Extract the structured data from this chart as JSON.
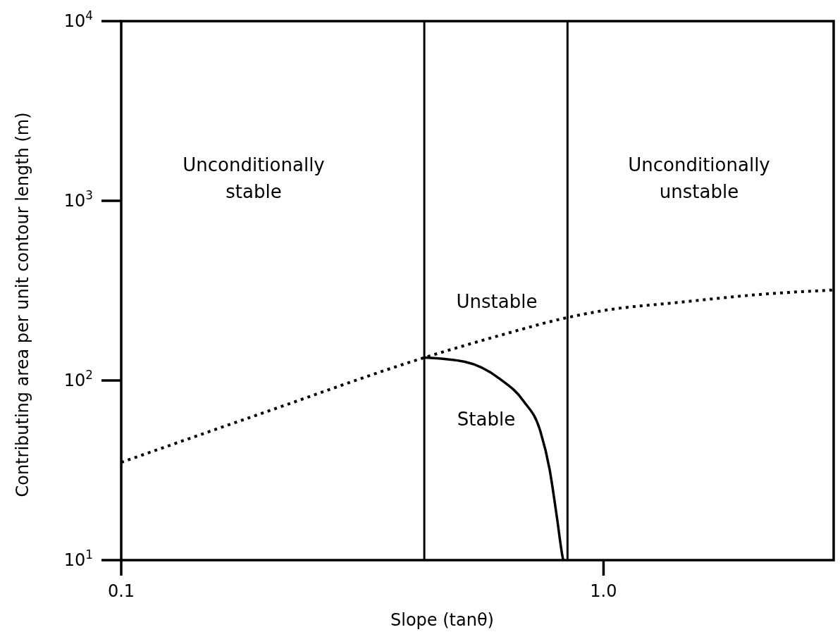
{
  "chart_data": {
    "type": "line",
    "xlabel": "Slope (tanθ)",
    "ylabel": "Contributing area per unit contour length (m)",
    "log": "xy",
    "grid": false,
    "xlim": [
      0.1,
      3
    ],
    "xticks": [
      0.1,
      {
        "value": 1,
        "label": "1.0"
      }
    ],
    "ylim": [
      10,
      10000
    ],
    "yticks": [
      {
        "value": 10,
        "label": "10$^{1}$"
      },
      {
        "value": 100,
        "label": "10$^{2}$"
      },
      {
        "value": 1000,
        "label": "10$^{3}$"
      },
      {
        "value": 10000,
        "label": "10$^{4}$"
      }
    ],
    "series": [
      {
        "color": "#000000",
        "line_style": "dotted",
        "x": [
          0.1,
          0.2,
          0.425,
          0.6,
          0.842,
          1.0,
          1.43,
          2.14,
          3
        ],
        "values": [
          35,
          67,
          134,
          176,
          224,
          245,
          272,
          302,
          319
        ]
      },
      {
        "color": "#000000",
        "line_style": "solid",
        "x": [
          0.425,
          0.516,
          0.61,
          0.682,
          0.74,
          0.773,
          0.8,
          0.822,
          0.825
        ],
        "values": [
          134,
          127,
          102,
          77,
          52,
          32,
          17.5,
          10.5,
          10
        ]
      }
    ],
    "ref_lines": [
      {
        "axis": "x",
        "value": 0.425,
        "color": "#000000",
        "line_style": "solid"
      },
      {
        "axis": "x",
        "value": 0.842,
        "color": "#000000",
        "line_style": "solid"
      }
    ],
    "annotations": [
      "Unconditionally stable",
      "Unconditionally unstable",
      "Unstable",
      "Stable"
    ]
  }
}
